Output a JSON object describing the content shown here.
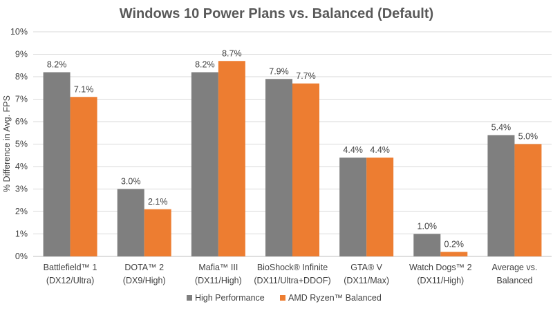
{
  "chart_data": {
    "type": "bar",
    "title": "Windows 10 Power Plans vs. Balanced (Default)",
    "xlabel": "",
    "ylabel": "% Difference in Avg. FPS",
    "ylim": [
      0,
      10
    ],
    "yticks": [
      "0%",
      "1%",
      "2%",
      "3%",
      "4%",
      "5%",
      "6%",
      "7%",
      "8%",
      "9%",
      "10%"
    ],
    "grid": true,
    "legend_position": "bottom",
    "categories": [
      [
        "Battlefield™ 1",
        "(DX12/Ultra)"
      ],
      [
        "DOTA™ 2",
        "(DX9/High)"
      ],
      [
        "Mafia™ III",
        "(DX11/High)"
      ],
      [
        "BioShock® Infinite",
        "(DX11/Ultra+DDOF)"
      ],
      [
        "GTA® V",
        "(DX11/Max)"
      ],
      [
        "Watch Dogs™ 2",
        "(DX11/High)"
      ],
      [
        "Average vs.",
        "Balanced"
      ]
    ],
    "series": [
      {
        "name": "High Performance",
        "color": "#7f7f7f",
        "values": [
          8.2,
          3.0,
          8.2,
          7.9,
          4.4,
          1.0,
          5.4
        ],
        "labels": [
          "8.2%",
          "3.0%",
          "8.2%",
          "7.9%",
          "4.4%",
          "1.0%",
          "5.4%"
        ]
      },
      {
        "name": "AMD Ryzen™ Balanced",
        "color": "#ed7d31",
        "values": [
          7.1,
          2.1,
          8.7,
          7.7,
          4.4,
          0.2,
          5.0
        ],
        "labels": [
          "7.1%",
          "2.1%",
          "8.7%",
          "7.7%",
          "4.4%",
          "0.2%",
          "5.0%"
        ]
      }
    ]
  }
}
